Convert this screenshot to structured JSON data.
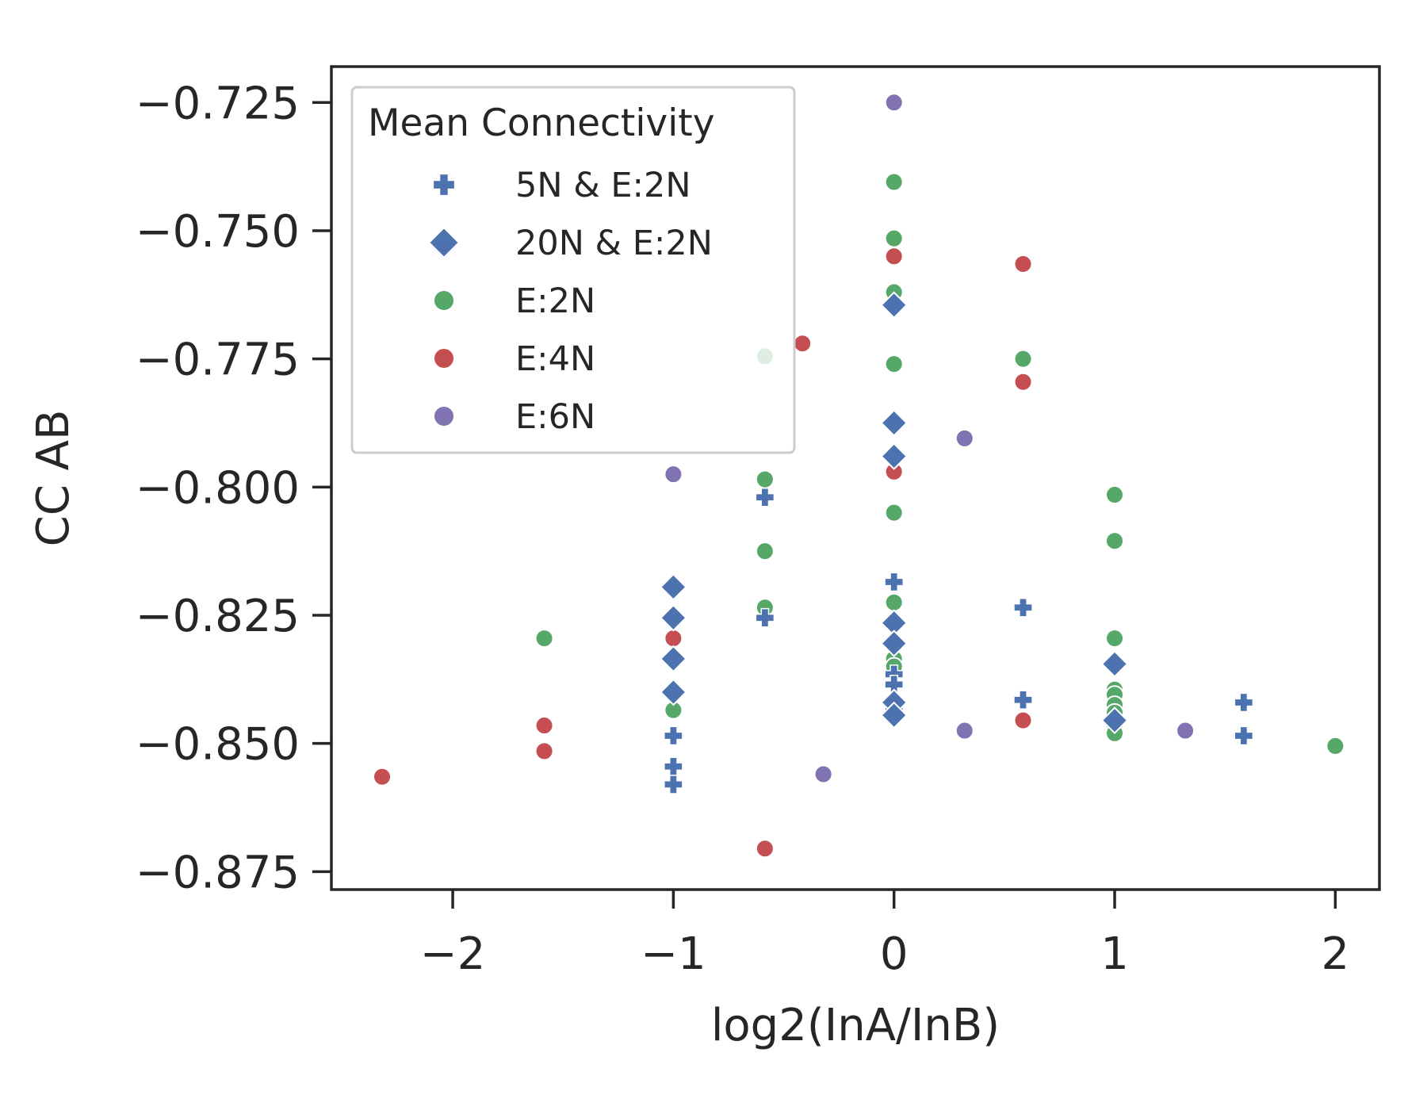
{
  "chart_data": {
    "type": "scatter",
    "xlabel": "log2(InA/InB)",
    "ylabel": "CC AB",
    "xlim": [
      -2.55,
      2.2
    ],
    "ylim": [
      -0.8785,
      -0.718
    ],
    "xticks": [
      -2,
      -1,
      0,
      1,
      2
    ],
    "xtick_labels": [
      "−2",
      "−1",
      "0",
      "1",
      "2"
    ],
    "yticks": [
      -0.725,
      -0.75,
      -0.775,
      -0.8,
      -0.825,
      -0.85,
      -0.875
    ],
    "ytick_labels": [
      "−0.725",
      "−0.750",
      "−0.775",
      "−0.800",
      "−0.825",
      "−0.850",
      "−0.875"
    ],
    "grid": false,
    "legend": {
      "title": "Mean Connectivity",
      "position": "top-left",
      "entries": [
        "5N & E:2N",
        "20N & E:2N",
        "E:2N",
        "E:4N",
        "E:6N"
      ]
    },
    "series": [
      {
        "name": "5N & E:2N",
        "marker": "plus",
        "color": "#4c72b0",
        "points": [
          [
            -1,
            -0.8485
          ],
          [
            -1,
            -0.8545
          ],
          [
            -1,
            -0.858
          ],
          [
            -0.585,
            -0.802
          ],
          [
            -0.585,
            -0.8255
          ],
          [
            0,
            -0.8185
          ],
          [
            0,
            -0.827
          ],
          [
            0,
            -0.8365
          ],
          [
            0,
            -0.8385
          ],
          [
            0,
            -0.8435
          ],
          [
            0.585,
            -0.8235
          ],
          [
            0.585,
            -0.8415
          ],
          [
            1.585,
            -0.842
          ],
          [
            1.585,
            -0.8485
          ]
        ]
      },
      {
        "name": "20N & E:2N",
        "marker": "diamond",
        "color": "#4c72b0",
        "points": [
          [
            -1,
            -0.8195
          ],
          [
            -1,
            -0.8255
          ],
          [
            -1,
            -0.8335
          ],
          [
            -1,
            -0.84
          ],
          [
            0,
            -0.7645
          ],
          [
            0,
            -0.7875
          ],
          [
            0,
            -0.794
          ],
          [
            0,
            -0.8265
          ],
          [
            0,
            -0.8305
          ],
          [
            0,
            -0.842
          ],
          [
            0,
            -0.8445
          ],
          [
            1,
            -0.8345
          ],
          [
            1,
            -0.8455
          ]
        ]
      },
      {
        "name": "E:2N",
        "marker": "circle",
        "color": "#55a868",
        "points": [
          [
            -1.585,
            -0.8295
          ],
          [
            -1,
            -0.8435
          ],
          [
            -0.585,
            -0.7745
          ],
          [
            -0.585,
            -0.7985
          ],
          [
            -0.585,
            -0.8125
          ],
          [
            -0.585,
            -0.8235
          ],
          [
            0,
            -0.7405
          ],
          [
            0,
            -0.7515
          ],
          [
            0,
            -0.762
          ],
          [
            0,
            -0.776
          ],
          [
            0,
            -0.805
          ],
          [
            0,
            -0.8225
          ],
          [
            0,
            -0.8335
          ],
          [
            0,
            -0.835
          ],
          [
            0.585,
            -0.775
          ],
          [
            1,
            -0.8015
          ],
          [
            1,
            -0.8105
          ],
          [
            1,
            -0.8295
          ],
          [
            1,
            -0.8395
          ],
          [
            1,
            -0.8405
          ],
          [
            1,
            -0.8425
          ],
          [
            1,
            -0.844
          ],
          [
            1,
            -0.8465
          ],
          [
            1,
            -0.848
          ],
          [
            2,
            -0.8505
          ]
        ]
      },
      {
        "name": "E:4N",
        "marker": "circle",
        "color": "#c44e52",
        "points": [
          [
            -2.32,
            -0.8565
          ],
          [
            -1.585,
            -0.8465
          ],
          [
            -1.585,
            -0.8515
          ],
          [
            -1,
            -0.8295
          ],
          [
            -0.585,
            -0.8705
          ],
          [
            -0.415,
            -0.772
          ],
          [
            0,
            -0.755
          ],
          [
            0,
            -0.797
          ],
          [
            0.585,
            -0.7565
          ],
          [
            0.585,
            -0.7795
          ],
          [
            0.585,
            -0.8455
          ]
        ]
      },
      {
        "name": "E:6N",
        "marker": "circle",
        "color": "#8172b2",
        "points": [
          [
            -1,
            -0.7975
          ],
          [
            -0.32,
            -0.856
          ],
          [
            0,
            -0.725
          ],
          [
            0.32,
            -0.7905
          ],
          [
            0.32,
            -0.8475
          ],
          [
            1.32,
            -0.8475
          ]
        ]
      }
    ]
  }
}
